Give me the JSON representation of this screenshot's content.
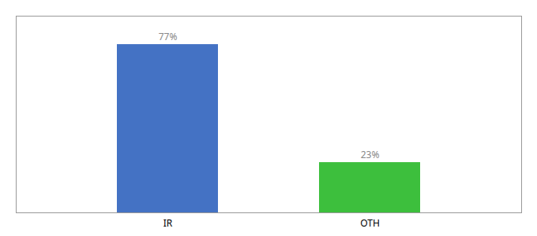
{
  "chart_data": {
    "type": "bar",
    "categories": [
      "IR",
      "OTH"
    ],
    "values": [
      77,
      23
    ],
    "value_labels": [
      "77%",
      "23%"
    ],
    "colors": [
      "#4472c4",
      "#3dbf3d"
    ],
    "ylim": [
      0,
      90
    ],
    "data_labels": true,
    "tick_labels": "x"
  }
}
